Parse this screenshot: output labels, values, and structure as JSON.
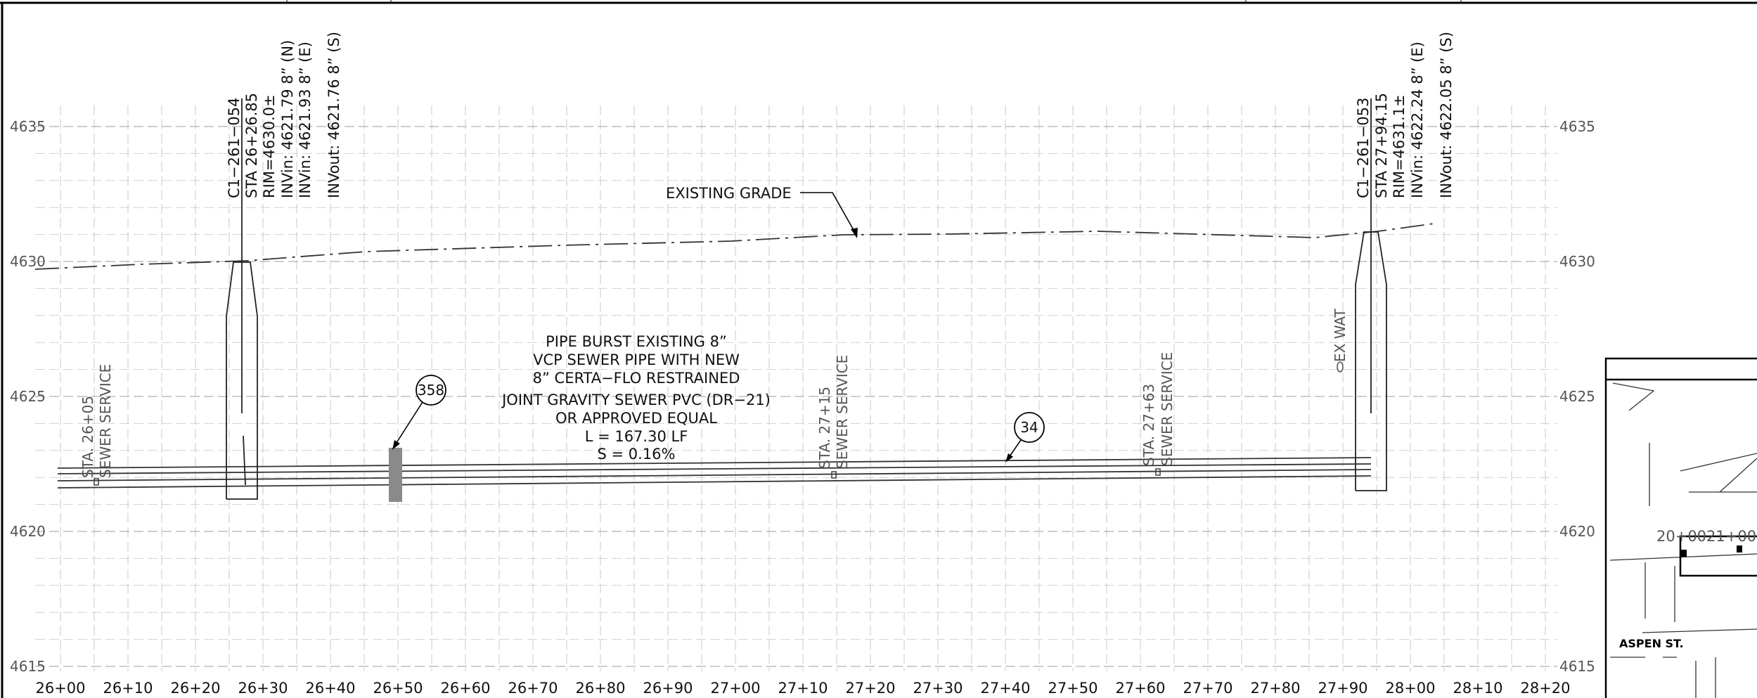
{
  "profile": {
    "elevation_labels": [
      "4635",
      "4630",
      "4625",
      "4620",
      "4615"
    ],
    "station_labels": [
      "26+00",
      "26+10",
      "26+20",
      "26+30",
      "26+40",
      "26+50",
      "26+60",
      "26+70",
      "26+80",
      "26+90",
      "27+00",
      "27+10",
      "27+20",
      "27+30",
      "27+40",
      "27+50",
      "27+60",
      "27+70",
      "27+80",
      "27+90",
      "28+00",
      "28+10",
      "28+20"
    ],
    "existing_grade_label": "EXISTING GRADE",
    "manhole_left": {
      "id": "C1−261−054",
      "sta": "STA 26+26.85",
      "rim": "RIM=4630.0±",
      "inv1": "INVin: 4621.79  8” (N)",
      "inv2": "INVin: 4621.93  8” (E)",
      "inv3": "INVout: 4621.76  8” (S)"
    },
    "manhole_right": {
      "id": "C1−261−053",
      "sta": "STA 27+94.15",
      "rim": "RIM=4631.1±",
      "inv1": "INVin: 4622.24  8” (E)",
      "inv2": "INVout: 4622.05  8” (S)"
    },
    "services": [
      {
        "sta": "STA. 26+05",
        "label": "SEWER SERVICE"
      },
      {
        "sta": "STA. 27+15",
        "label": "SEWER SERVICE"
      },
      {
        "sta": "STA. 27+63",
        "label": "SEWER SERVICE"
      }
    ],
    "pipe_note": [
      "PIPE BURST EXISTING 8”",
      "VCP SEWER PIPE WITH NEW",
      "8” CERTA−FLO RESTRAINED",
      "JOINT GRAVITY SEWER PVC (DR−21)",
      "OR APPROVED EQUAL",
      "L = 167.30 LF",
      "S = 0.16%"
    ],
    "callouts": [
      "358",
      "34"
    ],
    "ex_wat_label": "EX WAT"
  },
  "inset": {
    "street_label": "ASPEN ST.",
    "station_text": "20+0021+00"
  }
}
